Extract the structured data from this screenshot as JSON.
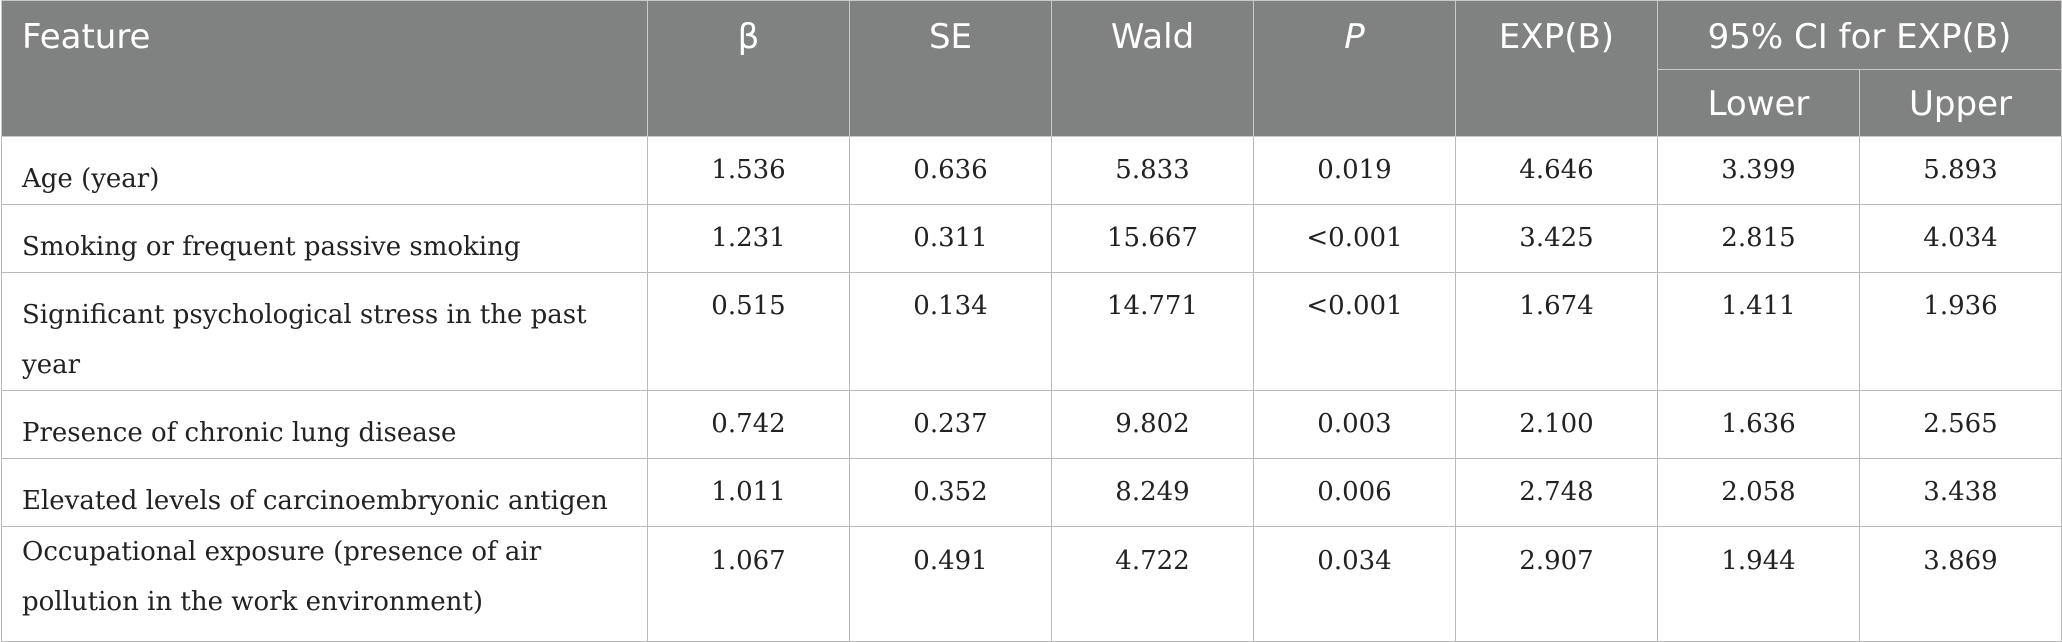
{
  "table": {
    "headers": {
      "feature": "Feature",
      "beta": "β",
      "se": "SE",
      "wald": "Wald",
      "p": "P",
      "expb": "EXP(B)",
      "ci": "95% CI for EXP(B)",
      "lower": "Lower",
      "upper": "Upper"
    },
    "rows": [
      {
        "feature": "Age (year)",
        "beta": "1.536",
        "se": "0.636",
        "wald": "5.833",
        "p": "0.019",
        "expb": "4.646",
        "lower": "3.399",
        "upper": "5.893"
      },
      {
        "feature": "Smoking or frequent passive smoking",
        "beta": "1.231",
        "se": "0.311",
        "wald": "15.667",
        "p": "<0.001",
        "expb": "3.425",
        "lower": "2.815",
        "upper": "4.034"
      },
      {
        "feature": "Significant psychological stress in the past year",
        "beta": "0.515",
        "se": "0.134",
        "wald": "14.771",
        "p": "<0.001",
        "expb": "1.674",
        "lower": "1.411",
        "upper": "1.936"
      },
      {
        "feature": "Presence of chronic lung disease",
        "beta": "0.742",
        "se": "0.237",
        "wald": "9.802",
        "p": "0.003",
        "expb": "2.100",
        "lower": "1.636",
        "upper": "2.565"
      },
      {
        "feature": "Elevated levels of carcinoembryonic antigen",
        "beta": "1.011",
        "se": "0.352",
        "wald": "8.249",
        "p": "0.006",
        "expb": "2.748",
        "lower": "2.058",
        "upper": "3.438"
      },
      {
        "feature": "Occupational exposure (presence of air pollution in the work environment)",
        "beta": "1.067",
        "se": "0.491",
        "wald": "4.722",
        "p": "0.034",
        "expb": "2.907",
        "lower": "1.944",
        "upper": "3.869"
      }
    ]
  }
}
